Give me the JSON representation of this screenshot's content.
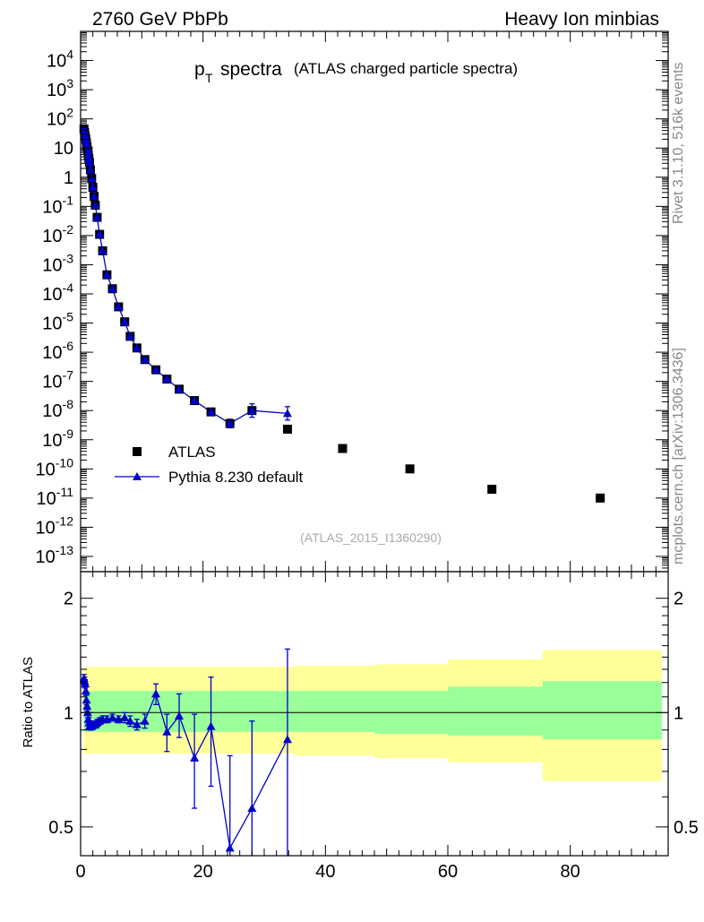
{
  "header": {
    "left": "2760 GeV PbPb",
    "right": "Heavy Ion minbias"
  },
  "side": {
    "rivet": "Rivet 3.1.10,  516k events",
    "mcplots": "mcplots.cern.ch [arXiv:1306.3436]"
  },
  "colors": {
    "mc": "#0000cc",
    "data": "#000000",
    "band_outer": "#ffff99",
    "band_inner": "#99ff99"
  },
  "chart_data": [
    {
      "type": "scatter",
      "title_main": "p",
      "title_sub": "T",
      "title_rest": "spectra",
      "title_extra": "(ATLAS charged particle spectra)",
      "analysis_tag": "(ATLAS_2015_I1360290)",
      "yscale": "log",
      "xlim": [
        0,
        96
      ],
      "ylim": [
        3e-14,
        100000.0
      ],
      "ytick_exponents": [
        -13,
        -12,
        -11,
        -10,
        -9,
        -8,
        -7,
        -6,
        -5,
        -4,
        -3,
        -2,
        -1,
        0,
        1,
        2,
        3,
        4
      ],
      "ytick_labels": [
        "10^-13",
        "10^-12",
        "10^-11",
        "10^-10",
        "10^-9",
        "10^-8",
        "10^-7",
        "10^-6",
        "10^-5",
        "10^-4",
        "10^-3",
        "10^-2",
        "10^-1",
        "1",
        "10",
        "10^2",
        "10^3",
        "10^4"
      ],
      "legend": {
        "position": "bottom-left",
        "entries": [
          "ATLAS",
          "Pythia 8.230 default"
        ]
      },
      "series": [
        {
          "name": "ATLAS",
          "marker": "square",
          "x": [
            0.55,
            0.65,
            0.75,
            0.85,
            0.95,
            1.05,
            1.15,
            1.25,
            1.35,
            1.45,
            1.6,
            1.8,
            2.0,
            2.2,
            2.4,
            2.7,
            3.1,
            3.6,
            4.3,
            5.2,
            6.2,
            7.2,
            8.1,
            9.2,
            10.5,
            12.3,
            14.1,
            16.1,
            18.6,
            21.3,
            24.4,
            28.0,
            33.8,
            42.8,
            53.8,
            67.2,
            84.9
          ],
          "y": [
            45,
            34,
            26,
            20,
            15,
            11,
            8.2,
            6.0,
            4.4,
            3.2,
            1.8,
            0.9,
            0.45,
            0.22,
            0.11,
            0.042,
            0.011,
            0.003,
            0.00045,
            0.00015,
            3.6e-05,
            1.1e-05,
            3.5e-06,
            1.4e-06,
            5.6e-07,
            2.5e-07,
            1.2e-07,
            5.4e-08,
            2.2e-08,
            9e-09,
            3.6e-09,
            1e-08,
            2.3e-09,
            5e-10,
            1e-10,
            2e-11,
            1e-11
          ]
        },
        {
          "name": "Pythia 8.230 default",
          "marker": "triangle",
          "line": true,
          "x": [
            0.55,
            0.65,
            0.75,
            0.85,
            0.95,
            1.05,
            1.15,
            1.25,
            1.35,
            1.45,
            1.6,
            1.8,
            2.0,
            2.2,
            2.4,
            2.7,
            3.1,
            3.6,
            4.3,
            5.2,
            6.2,
            7.2,
            8.1,
            9.2,
            10.5,
            12.3,
            14.1,
            16.1,
            18.6,
            21.3,
            24.4,
            28.0,
            33.8
          ],
          "y": [
            45,
            34,
            26,
            20,
            15,
            11,
            8.2,
            6.0,
            4.4,
            3.2,
            1.8,
            0.9,
            0.45,
            0.22,
            0.11,
            0.042,
            0.011,
            0.003,
            0.00045,
            0.00015,
            3.6e-05,
            1.1e-05,
            3.5e-06,
            1.4e-06,
            5.6e-07,
            2.5e-07,
            1.2e-07,
            5.4e-08,
            2.2e-08,
            9e-09,
            3.6e-09,
            1e-08,
            8e-09
          ],
          "yerr_factor": [
            1,
            1,
            1,
            1,
            1,
            1,
            1,
            1,
            1,
            1,
            1,
            1,
            1,
            1,
            1,
            1,
            1,
            1,
            1,
            1,
            1,
            1,
            1,
            1,
            1,
            1,
            1,
            1,
            1,
            1,
            1.4,
            1.7,
            1.7
          ]
        }
      ]
    },
    {
      "type": "scatter",
      "ylabel": "Ratio to ATLAS",
      "xlim": [
        0,
        96
      ],
      "ylim": [
        0.42,
        2.35
      ],
      "yticks": [
        0.5,
        1,
        2
      ],
      "ytick_labels": [
        "0.5",
        "1",
        "2"
      ],
      "xticks": [
        0,
        20,
        40,
        60,
        80
      ],
      "xtick_labels": [
        "0",
        "20",
        "40",
        "60",
        "80"
      ],
      "uncertainty_bands": {
        "edges": [
          0.5,
          2.0,
          3.0,
          35.0,
          48.0,
          60.0,
          75.5,
          95.0
        ],
        "outer_lo": [
          0.78,
          0.78,
          0.78,
          0.77,
          0.76,
          0.74,
          0.66
        ],
        "outer_hi": [
          1.32,
          1.32,
          1.32,
          1.33,
          1.34,
          1.38,
          1.46
        ],
        "inner_lo": [
          0.89,
          0.89,
          0.89,
          0.89,
          0.88,
          0.87,
          0.85
        ],
        "inner_hi": [
          1.14,
          1.14,
          1.14,
          1.14,
          1.14,
          1.17,
          1.21
        ]
      },
      "series": [
        {
          "name": "Pythia 8.230 default",
          "marker": "triangle",
          "x": [
            0.55,
            0.65,
            0.75,
            0.85,
            0.95,
            1.05,
            1.15,
            1.25,
            1.35,
            1.45,
            1.6,
            1.8,
            2.0,
            2.2,
            2.4,
            2.7,
            3.1,
            3.6,
            4.3,
            5.2,
            6.2,
            7.2,
            8.1,
            9.2,
            10.5,
            12.3,
            14.1,
            16.1,
            18.6,
            21.3,
            24.4,
            28.0,
            33.8
          ],
          "y": [
            1.23,
            1.21,
            1.19,
            1.14,
            1.08,
            1.04,
            1.0,
            0.96,
            0.94,
            0.92,
            0.92,
            0.92,
            0.93,
            0.93,
            0.93,
            0.94,
            0.95,
            0.96,
            0.96,
            0.97,
            0.96,
            0.97,
            0.95,
            0.93,
            0.95,
            1.12,
            0.89,
            0.98,
            0.76,
            0.92,
            0.44,
            0.56,
            0.85
          ],
          "ylo": [
            1.2,
            1.18,
            1.16,
            1.11,
            1.05,
            1.01,
            0.97,
            0.93,
            0.91,
            0.9,
            0.9,
            0.9,
            0.91,
            0.91,
            0.91,
            0.92,
            0.93,
            0.94,
            0.94,
            0.95,
            0.94,
            0.94,
            0.92,
            0.9,
            0.91,
            1.05,
            0.79,
            0.86,
            0.56,
            0.64,
            0.3,
            0.3,
            0.3
          ],
          "yhi": [
            1.26,
            1.24,
            1.22,
            1.17,
            1.11,
            1.07,
            1.03,
            0.99,
            0.97,
            0.94,
            0.94,
            0.94,
            0.95,
            0.95,
            0.95,
            0.96,
            0.97,
            0.98,
            0.98,
            0.99,
            0.98,
            1.0,
            0.98,
            0.96,
            0.99,
            1.19,
            0.99,
            1.12,
            0.99,
            1.24,
            0.77,
            0.95,
            1.47
          ]
        }
      ]
    }
  ]
}
